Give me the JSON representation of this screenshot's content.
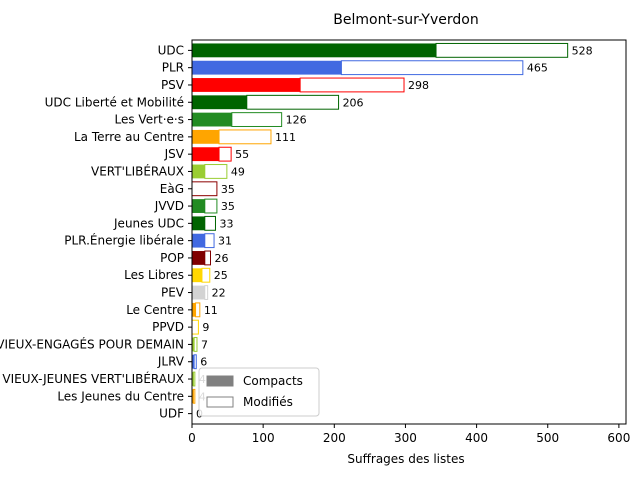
{
  "chart_data": {
    "type": "bar",
    "orientation": "horizontal",
    "title": "Belmont-sur-Yverdon",
    "xlabel": "Suffrages des listes",
    "ylabel": "",
    "xlim": [
      0,
      610
    ],
    "xticks": [
      0,
      100,
      200,
      300,
      400,
      500,
      600
    ],
    "legend": {
      "placement": "lower-left",
      "entries": [
        {
          "name": "Compacts",
          "style": "filled",
          "color": "#808080"
        },
        {
          "name": "Modifiés",
          "style": "outline",
          "color": "#808080"
        }
      ]
    },
    "categories": [
      "UDC",
      "PLR",
      "PSV",
      "UDC Liberté et Mobilité",
      "Les Vert·e·s",
      "La Terre au Centre",
      "JSV",
      "VERT'LIBÉRAUX",
      "EàG",
      "JVVD",
      "Jeunes UDC",
      "PLR.Énergie libérale",
      "POP",
      "Les Libres",
      "PEV",
      "Le Centre",
      "PPVD",
      "LES VIEUX-ENGAGÉS POUR DEMAIN",
      "JLRV",
      "LES VIEUX-JEUNES VERT'LIBÉRAUX",
      "Les Jeunes du Centre",
      "UDF"
    ],
    "totals": [
      528,
      465,
      298,
      206,
      126,
      111,
      55,
      49,
      35,
      35,
      33,
      31,
      26,
      25,
      22,
      11,
      9,
      7,
      6,
      4,
      4,
      0
    ],
    "compacts": [
      343,
      210,
      152,
      77,
      56,
      38,
      38,
      18,
      0,
      18,
      18,
      18,
      18,
      14,
      18,
      5,
      0,
      3,
      3,
      2,
      2,
      0
    ],
    "colors": [
      "#006400",
      "#4169e1",
      "#ff0000",
      "#006400",
      "#228b22",
      "#ffa500",
      "#ff0000",
      "#9acd32",
      "#8b0000",
      "#228b22",
      "#006400",
      "#4169e1",
      "#800000",
      "#ffd700",
      "#d3d3d3",
      "#ffa500",
      "#ffd700",
      "#9acd32",
      "#4169e1",
      "#9acd32",
      "#ffa500",
      "#8b6914"
    ]
  }
}
